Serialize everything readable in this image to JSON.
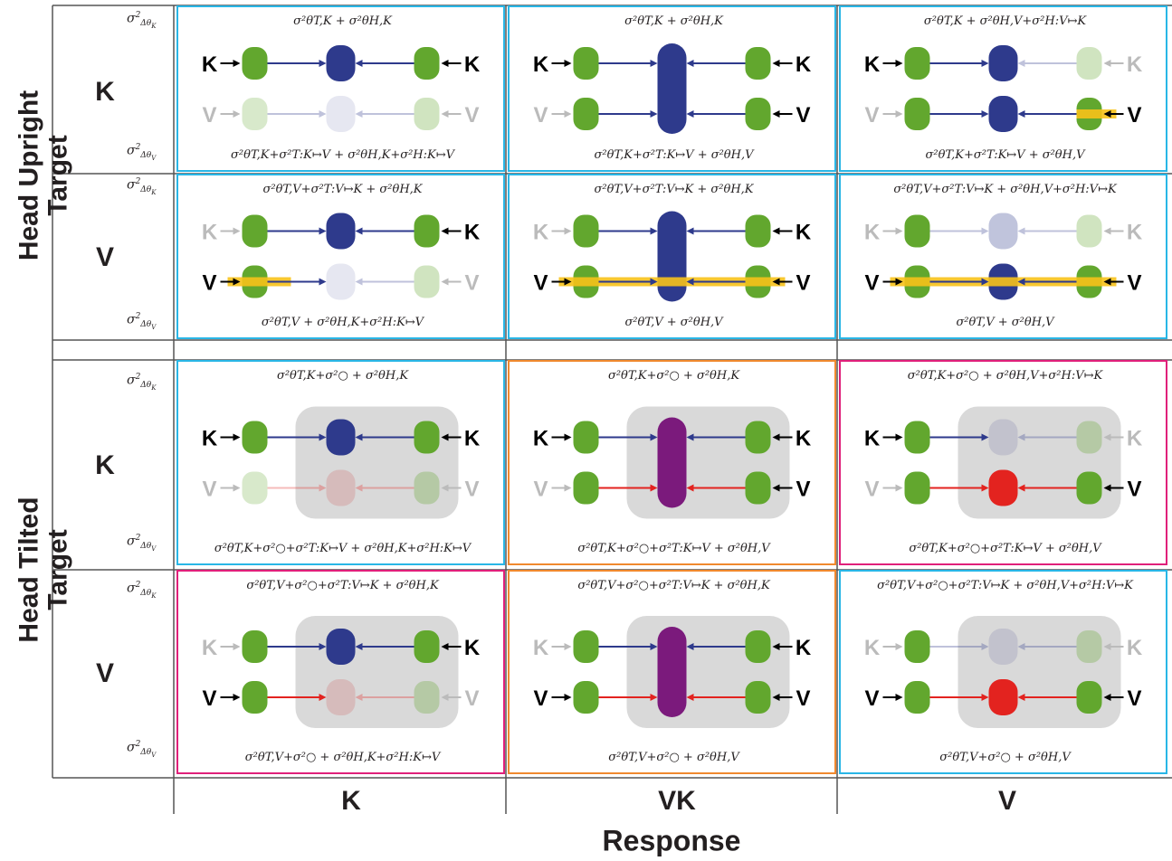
{
  "labels": {
    "upright": "Head Upright\nTarget",
    "tilted": "Head Tilted\nTarget",
    "response": "Response",
    "cols": [
      "K",
      "VK",
      "V"
    ],
    "rows": [
      "K",
      "V",
      "K",
      "V"
    ],
    "side_top": "σ²Δθ_K",
    "side_bottom": "σ²Δθ_V"
  },
  "colors": {
    "green": "#62a72e",
    "navy": "#2e3a8c",
    "purple": "#7b1a7c",
    "red": "#e3231f",
    "yellow": "#f7c21a",
    "border_blue": "#29b6e6",
    "border_orange": "#f0892e",
    "border_pink": "#e0207a",
    "tilt_bg": "#d9d9d9"
  },
  "panels": [
    {
      "row": 0,
      "col": 0,
      "border": "blue",
      "top": "σ²θT,K + σ²θH,K",
      "bottom": "σ²θT,K+σ²T:K↦V + σ²θH,K+σ²H:K↦V",
      "tilted": false,
      "target": "K",
      "response": "K"
    },
    {
      "row": 0,
      "col": 1,
      "border": "blue",
      "top": "σ²θT,K + σ²θH,K",
      "bottom": "σ²θT,K+σ²T:K↦V + σ²θH,V",
      "tilted": false,
      "target": "K",
      "response": "VK"
    },
    {
      "row": 0,
      "col": 2,
      "border": "blue",
      "top": "σ²θT,K + σ²θH,V+σ²H:V↦K",
      "bottom": "σ²θT,K+σ²T:K↦V + σ²θH,V",
      "tilted": false,
      "target": "K",
      "response": "V"
    },
    {
      "row": 1,
      "col": 0,
      "border": "blue",
      "top": "σ²θT,V+σ²T:V↦K + σ²θH,K",
      "bottom": "σ²θT,V + σ²θH,K+σ²H:K↦V",
      "tilted": false,
      "target": "V",
      "response": "K"
    },
    {
      "row": 1,
      "col": 1,
      "border": "blue",
      "top": "σ²θT,V+σ²T:V↦K + σ²θH,K",
      "bottom": "σ²θT,V + σ²θH,V",
      "tilted": false,
      "target": "V",
      "response": "VK"
    },
    {
      "row": 1,
      "col": 2,
      "border": "blue",
      "top": "σ²θT,V+σ²T:V↦K + σ²θH,V+σ²H:V↦K",
      "bottom": "σ²θT,V + σ²θH,V",
      "tilted": false,
      "target": "V",
      "response": "V"
    },
    {
      "row": 2,
      "col": 0,
      "border": "blue",
      "top": "σ²θT,K+σ²○ + σ²θH,K",
      "bottom": "σ²θT,K+σ²○+σ²T:K↦V + σ²θH,K+σ²H:K↦V",
      "tilted": true,
      "target": "K",
      "response": "K"
    },
    {
      "row": 2,
      "col": 1,
      "border": "orange",
      "top": "σ²θT,K+σ²○ + σ²θH,K",
      "bottom": "σ²θT,K+σ²○+σ²T:K↦V + σ²θH,V",
      "tilted": true,
      "target": "K",
      "response": "VK"
    },
    {
      "row": 2,
      "col": 2,
      "border": "pink",
      "top": "σ²θT,K+σ²○ + σ²θH,V+σ²H:V↦K",
      "bottom": "σ²θT,K+σ²○+σ²T:K↦V + σ²θH,V",
      "tilted": true,
      "target": "K",
      "response": "V"
    },
    {
      "row": 3,
      "col": 0,
      "border": "pink",
      "top": "σ²θT,V+σ²○+σ²T:V↦K + σ²θH,K",
      "bottom": "σ²θT,V+σ²○ + σ²θH,K+σ²H:K↦V",
      "tilted": true,
      "target": "V",
      "response": "K"
    },
    {
      "row": 3,
      "col": 1,
      "border": "orange",
      "top": "σ²θT,V+σ²○+σ²T:V↦K + σ²θH,K",
      "bottom": "σ²θT,V+σ²○ + σ²θH,V",
      "tilted": true,
      "target": "V",
      "response": "VK"
    },
    {
      "row": 3,
      "col": 2,
      "border": "blue",
      "top": "σ²θT,V+σ²○+σ²T:V↦K + σ²θH,V+σ²H:V↦K",
      "bottom": "σ²θT,V+σ²○ + σ²θH,V",
      "tilted": true,
      "target": "V",
      "response": "V"
    }
  ]
}
